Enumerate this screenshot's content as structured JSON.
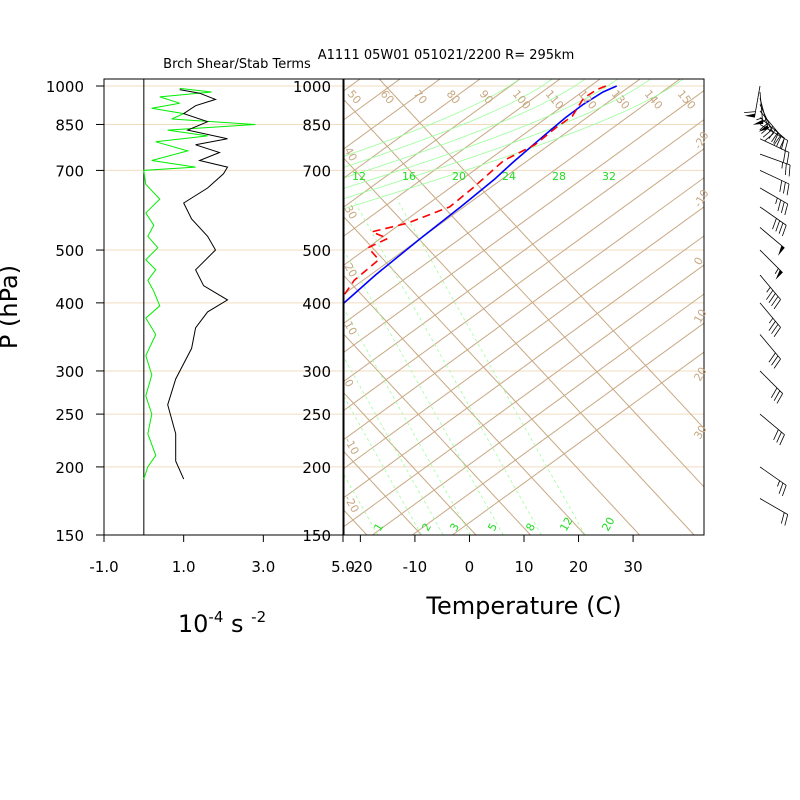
{
  "colors": {
    "background": "#ffffff",
    "isobar": "#f0dcc0",
    "skew_grid": "#c8a882",
    "mixing_ratio": "#99ff99",
    "green_labels": "#22dd22",
    "temperature": "#0000ff",
    "dewpoint": "#ff0000",
    "shear": "#00ee00",
    "stability": "#000000",
    "wind_barb": "#000000"
  },
  "header": {
    "left_title": "Brch Shear/Stab Terms",
    "right_title": "A1111 05W01 051021/2200 R= 295km"
  },
  "chart_data": [
    {
      "type": "line",
      "title": "Brch Shear/Stab Terms",
      "ylabel": "P (hPa)",
      "xlabel_base": "10",
      "xlabel_exp1": "-4",
      "xlabel_mid": " s ",
      "xlabel_exp2": "-2",
      "y_scale": "log",
      "ylim": [
        1030,
        150
      ],
      "xlim": [
        -1.0,
        5.0
      ],
      "x_ticks": [
        "-1.0",
        "1.0",
        "3.0",
        "5.0"
      ],
      "y_ticks": [
        "150",
        "200",
        "250",
        "300",
        "400",
        "500",
        "700",
        "850",
        "1000"
      ],
      "series": [
        {
          "points": [
            [
              0.0,
              190
            ],
            [
              0.1,
              200
            ],
            [
              0.3,
              210
            ],
            [
              0.1,
              230
            ],
            [
              0.2,
              250
            ],
            [
              0.05,
              270
            ],
            [
              0.2,
              295
            ],
            [
              0.05,
              320
            ],
            [
              0.3,
              350
            ],
            [
              0.05,
              375
            ],
            [
              0.4,
              395
            ],
            [
              0.25,
              420
            ],
            [
              0.1,
              440
            ],
            [
              0.3,
              460
            ],
            [
              0.05,
              480
            ],
            [
              0.35,
              505
            ],
            [
              0.1,
              530
            ],
            [
              0.25,
              555
            ],
            [
              0.05,
              585
            ],
            [
              0.4,
              620
            ],
            [
              0.05,
              660
            ],
            [
              0.0,
              700
            ],
            [
              1.3,
              710
            ],
            [
              0.2,
              730
            ],
            [
              1.1,
              760
            ],
            [
              0.3,
              790
            ],
            [
              1.6,
              810
            ],
            [
              0.6,
              830
            ],
            [
              2.8,
              850
            ],
            [
              0.7,
              870
            ],
            [
              1.0,
              890
            ],
            [
              0.2,
              910
            ],
            [
              0.9,
              930
            ],
            [
              0.4,
              955
            ],
            [
              1.7,
              975
            ],
            [
              0.9,
              990
            ]
          ]
        },
        {
          "points": [
            [
              1.0,
              190
            ],
            [
              0.8,
              205
            ],
            [
              0.8,
              230
            ],
            [
              0.6,
              260
            ],
            [
              0.8,
              290
            ],
            [
              1.2,
              330
            ],
            [
              1.3,
              360
            ],
            [
              1.6,
              385
            ],
            [
              2.1,
              405
            ],
            [
              1.5,
              430
            ],
            [
              1.3,
              460
            ],
            [
              1.8,
              500
            ],
            [
              1.6,
              530
            ],
            [
              1.2,
              570
            ],
            [
              1.0,
              610
            ],
            [
              1.6,
              650
            ],
            [
              2.0,
              690
            ],
            [
              2.1,
              710
            ],
            [
              1.4,
              730
            ],
            [
              1.9,
              755
            ],
            [
              1.3,
              780
            ],
            [
              2.1,
              800
            ],
            [
              1.1,
              830
            ],
            [
              1.6,
              860
            ],
            [
              1.0,
              890
            ],
            [
              1.3,
              920
            ],
            [
              1.8,
              945
            ],
            [
              1.4,
              970
            ],
            [
              0.9,
              985
            ]
          ]
        }
      ]
    },
    {
      "type": "line",
      "xlabel": "Temperature (C)",
      "y_scale": "log",
      "ylim": [
        1030,
        150
      ],
      "xlim": [
        -23,
        43
      ],
      "x_ticks": [
        "-20",
        "-10",
        "0",
        "10",
        "20",
        "30"
      ],
      "y_ticks": [
        "150",
        "200",
        "250",
        "300",
        "400",
        "500",
        "700",
        "850",
        "1000"
      ],
      "skew_top_labels": [
        "50",
        "60",
        "70",
        "80",
        "90",
        "100",
        "110",
        "120",
        "130",
        "140",
        "150"
      ],
      "skew_left_labels": [
        "40",
        "30",
        "20",
        "10",
        "0",
        "-10",
        "-20"
      ],
      "skew_right_labels": [
        "-20",
        "-10",
        "0",
        "10",
        "20",
        "30"
      ],
      "mixing_top_labels": [
        "12",
        "16",
        "20",
        "24",
        "28",
        "32"
      ],
      "mixing_bottom_labels": [
        "1",
        "2",
        "3",
        "5",
        "8",
        "12",
        "20"
      ],
      "series": [
        {
          "points": [
            [
              27,
              1000
            ],
            [
              25.5,
              975
            ],
            [
              24,
              925
            ],
            [
              23,
              875
            ],
            [
              22,
              800
            ],
            [
              21,
              725
            ],
            [
              20.5,
              675
            ],
            [
              19,
              600
            ],
            [
              17,
              525
            ],
            [
              15,
              450
            ],
            [
              14,
              400
            ],
            [
              12,
              340
            ],
            [
              9,
              290
            ],
            [
              5,
              245
            ],
            [
              2,
              210
            ],
            [
              0.5,
              180
            ]
          ]
        },
        {
          "points": [
            [
              25,
              1000
            ],
            [
              24,
              985
            ],
            [
              23,
              950
            ],
            [
              24,
              880
            ],
            [
              23,
              840
            ],
            [
              22,
              780
            ],
            [
              19,
              730
            ],
            [
              18,
              650
            ],
            [
              17,
              600
            ],
            [
              12,
              560
            ],
            [
              7,
              540
            ],
            [
              11,
              525
            ],
            [
              9,
              505
            ],
            [
              13,
              480
            ],
            [
              12,
              440
            ],
            [
              13,
              400
            ],
            [
              13,
              350
            ],
            [
              11,
              310
            ],
            [
              7,
              280
            ],
            [
              4,
              240
            ],
            [
              1,
              210
            ]
          ]
        }
      ],
      "wind_profile": [
        {
          "p": 1000,
          "dir": 190,
          "spd": 60
        },
        {
          "p": 975,
          "dir": 175,
          "spd": 55
        },
        {
          "p": 950,
          "dir": 165,
          "spd": 50
        },
        {
          "p": 925,
          "dir": 155,
          "spd": 45
        },
        {
          "p": 900,
          "dir": 140,
          "spd": 35
        },
        {
          "p": 875,
          "dir": 130,
          "spd": 28
        },
        {
          "p": 850,
          "dir": 120,
          "spd": 22
        },
        {
          "p": 800,
          "dir": 115,
          "spd": 20
        },
        {
          "p": 750,
          "dir": 110,
          "spd": 25
        },
        {
          "p": 700,
          "dir": 115,
          "spd": 32
        },
        {
          "p": 650,
          "dir": 120,
          "spd": 35
        },
        {
          "p": 600,
          "dir": 125,
          "spd": 40
        },
        {
          "p": 550,
          "dir": 130,
          "spd": 52
        },
        {
          "p": 500,
          "dir": 135,
          "spd": 55
        },
        {
          "p": 450,
          "dir": 140,
          "spd": 45
        },
        {
          "p": 400,
          "dir": 140,
          "spd": 35
        },
        {
          "p": 350,
          "dir": 140,
          "spd": 30
        },
        {
          "p": 300,
          "dir": 135,
          "spd": 30
        },
        {
          "p": 250,
          "dir": 130,
          "spd": 30
        },
        {
          "p": 200,
          "dir": 125,
          "spd": 25
        },
        {
          "p": 175,
          "dir": 120,
          "spd": 20
        }
      ]
    }
  ]
}
